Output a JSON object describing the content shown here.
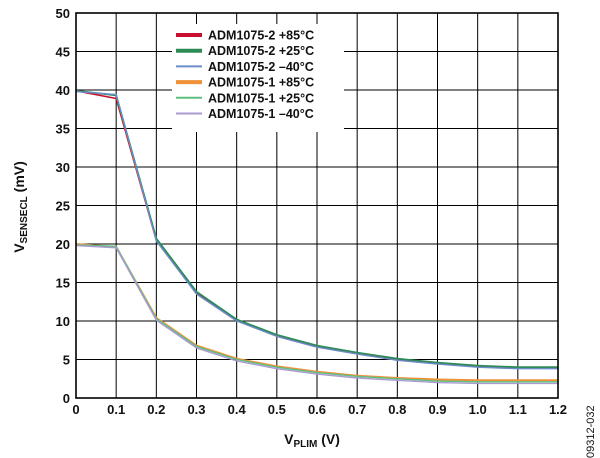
{
  "figure_id": "09312-032",
  "chart_data": {
    "type": "line",
    "xlabel_main": "V",
    "xlabel_sub": "PLIM",
    "xlabel_unit": " (V)",
    "ylabel_main": "V",
    "ylabel_sub": "SENSECL",
    "ylabel_unit": " (mV)",
    "xlim": [
      0,
      1.2
    ],
    "ylim": [
      0,
      50
    ],
    "x_ticks": [
      0,
      0.1,
      0.2,
      0.3,
      0.4,
      0.5,
      0.6,
      0.7,
      0.8,
      0.9,
      1.0,
      1.1,
      1.2
    ],
    "x_tick_labels": [
      "0",
      "0.1",
      "0.2",
      "0.3",
      "0.4",
      "0.5",
      "0.6",
      "0.7",
      "0.8",
      "0.9",
      "1.0",
      "1.1",
      "1.2"
    ],
    "y_ticks": [
      0,
      5,
      10,
      15,
      20,
      25,
      30,
      35,
      40,
      45,
      50
    ],
    "y_tick_labels": [
      "0",
      "5",
      "10",
      "15",
      "20",
      "25",
      "30",
      "35",
      "40",
      "45",
      "50"
    ],
    "grid": true,
    "legend_position": "top-center",
    "x": [
      0,
      0.1,
      0.2,
      0.3,
      0.4,
      0.5,
      0.6,
      0.7,
      0.8,
      0.9,
      1.0,
      1.1,
      1.2
    ],
    "series": [
      {
        "name": "ADM1075-2 +85°C",
        "color": "#c8102e",
        "width": 1.6,
        "legend_width": 4,
        "values": [
          39.9,
          38.9,
          20.5,
          13.6,
          10.1,
          8.1,
          6.7,
          5.8,
          5.0,
          4.5,
          4.1,
          3.9,
          3.9
        ]
      },
      {
        "name": "ADM1075-2 +25°C",
        "color": "#2e8b57",
        "width": 1.8,
        "legend_width": 4,
        "values": [
          39.9,
          39.3,
          20.7,
          13.8,
          10.2,
          8.2,
          6.8,
          5.9,
          5.1,
          4.6,
          4.2,
          4.0,
          4.0
        ]
      },
      {
        "name": "ADM1075-2 –40°C",
        "color": "#6b8cc7",
        "width": 1.4,
        "legend_width": 2,
        "values": [
          39.8,
          39.4,
          20.4,
          13.5,
          10.0,
          8.0,
          6.6,
          5.7,
          4.9,
          4.4,
          4.0,
          3.8,
          3.8
        ]
      },
      {
        "name": "ADM1075-1 +85°C",
        "color": "#f0913a",
        "width": 2.0,
        "legend_width": 4,
        "values": [
          20.0,
          19.6,
          10.4,
          6.8,
          5.1,
          4.1,
          3.4,
          2.9,
          2.6,
          2.4,
          2.3,
          2.3,
          2.3
        ]
      },
      {
        "name": "ADM1075-1 +25°C",
        "color": "#5fbf7f",
        "width": 1.4,
        "legend_width": 2,
        "values": [
          19.9,
          19.7,
          10.3,
          6.7,
          5.0,
          4.0,
          3.3,
          2.8,
          2.5,
          2.2,
          2.1,
          2.1,
          2.1
        ]
      },
      {
        "name": "ADM1075-1 –40°C",
        "color": "#a99ad0",
        "width": 1.4,
        "legend_width": 2,
        "values": [
          19.8,
          19.5,
          10.1,
          6.5,
          4.8,
          3.8,
          3.1,
          2.6,
          2.3,
          2.0,
          1.9,
          1.9,
          1.9
        ]
      }
    ]
  }
}
